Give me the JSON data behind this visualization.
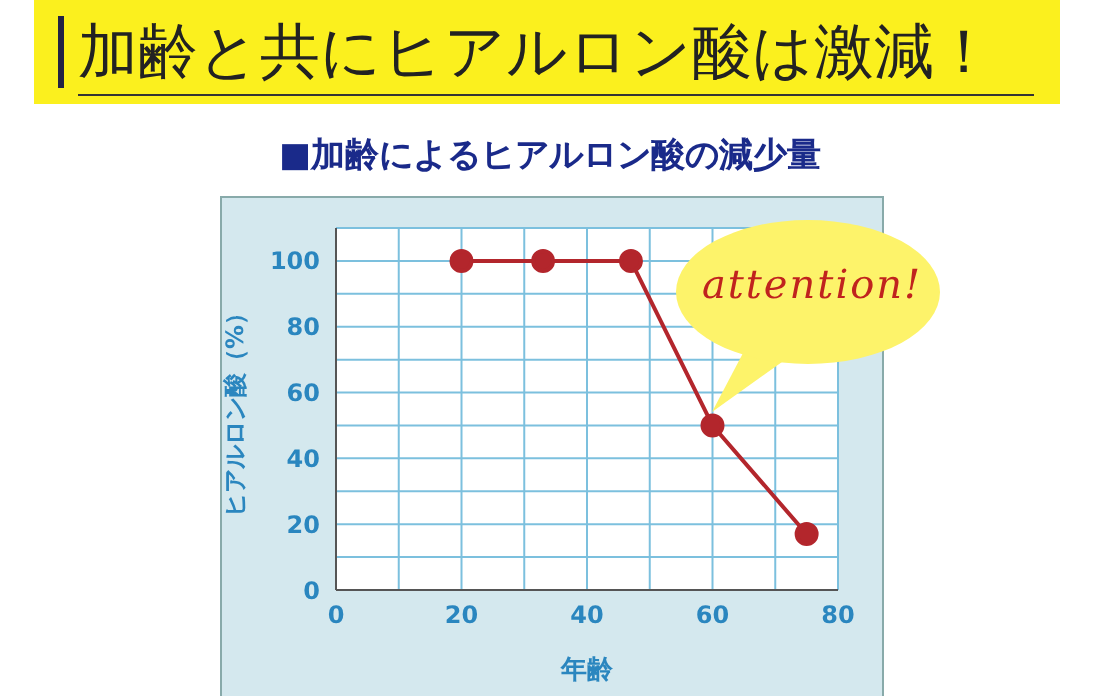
{
  "chart_data": {
    "type": "line",
    "title": "加齢と共にヒアルロン酸は激減！",
    "subtitle": "■加齢によるヒアルロン酸の減少量",
    "xlabel": "年齢",
    "ylabel": "ヒアルロン酸（%）",
    "x": [
      20,
      33,
      47,
      60,
      75
    ],
    "series": [
      {
        "color": "#b3262c",
        "values": [
          100,
          100,
          100,
          50,
          17
        ]
      }
    ],
    "xlim": [
      0,
      80
    ],
    "xticks": [
      0,
      {
        "value": 10,
        "label": null
      },
      20,
      {
        "value": 30,
        "label": null
      },
      40,
      {
        "value": 50,
        "label": null
      },
      60,
      {
        "value": 70,
        "label": null
      },
      80
    ],
    "ylim": [
      0,
      110
    ],
    "yticks": [
      0,
      {
        "value": 10,
        "label": null
      },
      20,
      {
        "value": 30,
        "label": null
      },
      40,
      {
        "value": 50,
        "label": null
      },
      60,
      {
        "value": 70,
        "label": null
      },
      80,
      {
        "value": 90,
        "label": null
      },
      100,
      {
        "value": 110,
        "label": null
      }
    ],
    "grid": true,
    "marker": "circle",
    "line_style": "solid",
    "legend": false,
    "annotations": [
      "attention!"
    ]
  }
}
